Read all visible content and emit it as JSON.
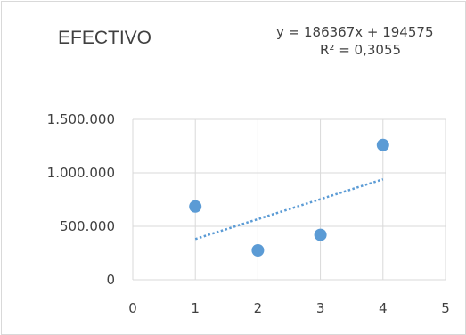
{
  "chart_data": {
    "type": "scatter",
    "title": "EFECTIVO",
    "xlabel": "",
    "ylabel": "",
    "xlim": [
      0,
      5
    ],
    "ylim": [
      0,
      1500000
    ],
    "x_ticks": [
      0,
      1,
      2,
      3,
      4,
      5
    ],
    "x_tick_labels": [
      "0",
      "1",
      "2",
      "3",
      "4",
      "5"
    ],
    "y_ticks": [
      0,
      500000,
      1000000,
      1500000
    ],
    "y_tick_labels": [
      "0",
      "500.000",
      "1.000.000",
      "1.500.000"
    ],
    "grid": true,
    "series": [
      {
        "x": [
          1,
          2,
          3,
          4
        ],
        "y": [
          685000,
          275000,
          420000,
          1260000
        ],
        "color": "#5b9bd5"
      }
    ],
    "trendline": {
      "kind": "linear",
      "slope": 186367,
      "intercept": 194575,
      "x_range": [
        1,
        4
      ],
      "style": "dotted",
      "color": "#5b9bd5",
      "equation_label": "y = 186367x + 194575",
      "r2_label": "R² = 0,3055"
    }
  }
}
